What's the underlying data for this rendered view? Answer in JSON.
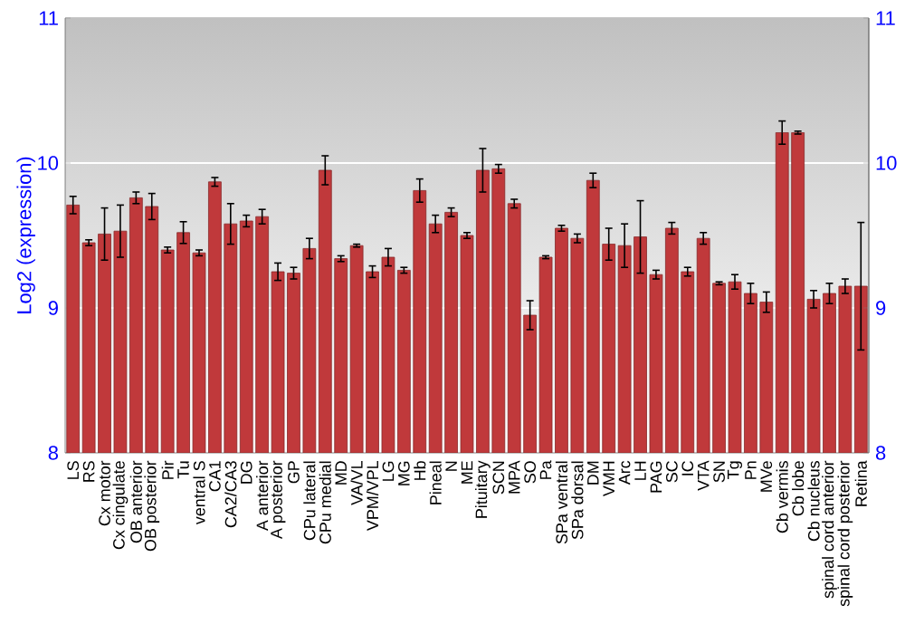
{
  "chart_data": {
    "type": "bar",
    "ylabel": "Log2 (expression)",
    "categories": [
      "LS",
      "RS",
      "Cx motor",
      "Cx cingulate",
      "OB anterior",
      "OB posterior",
      "Pir",
      "Tu",
      "ventral S",
      "CA1",
      "CA2/CA3",
      "DG",
      "A anterior",
      "A posterior",
      "GP",
      "CPu lateral",
      "CPu medial",
      "MD",
      "VA/VL",
      "VPM/VPL",
      "LG",
      "MG",
      "Hb",
      "Pineal",
      "N",
      "ME",
      "Pituitary",
      "SCN",
      "MPA",
      "SO",
      "Pa",
      "SPa ventral",
      "SPa dorsal",
      "DM",
      "VMH",
      "Arc",
      "LH",
      "PAG",
      "SC",
      "IC",
      "VTA",
      "SN",
      "Tg",
      "Pn",
      "MVe",
      "Cb vermis",
      "Cb lobe",
      "Cb nucleus",
      "spinal cord anterior",
      "spinal cord posterior",
      "Retina"
    ],
    "values": [
      9.71,
      9.45,
      9.51,
      9.53,
      9.76,
      9.7,
      9.4,
      9.52,
      9.38,
      9.87,
      9.58,
      9.6,
      9.63,
      9.25,
      9.24,
      9.41,
      9.95,
      9.34,
      9.43,
      9.25,
      9.35,
      9.26,
      9.81,
      9.58,
      9.66,
      9.5,
      9.95,
      9.96,
      9.72,
      8.95,
      9.35,
      9.55,
      9.48,
      9.88,
      9.44,
      9.43,
      9.49,
      9.23,
      9.55,
      9.25,
      9.48,
      9.17,
      9.18,
      9.1,
      9.04,
      10.21,
      10.21,
      9.06,
      9.1,
      9.15,
      9.15
    ],
    "errors": [
      0.06,
      0.02,
      0.18,
      0.18,
      0.04,
      0.09,
      0.02,
      0.075,
      0.02,
      0.03,
      0.14,
      0.04,
      0.05,
      0.06,
      0.04,
      0.07,
      0.1,
      0.02,
      0.01,
      0.04,
      0.06,
      0.02,
      0.08,
      0.06,
      0.03,
      0.02,
      0.15,
      0.03,
      0.03,
      0.1,
      0.01,
      0.02,
      0.03,
      0.05,
      0.11,
      0.15,
      0.25,
      0.03,
      0.04,
      0.03,
      0.04,
      0.01,
      0.05,
      0.07,
      0.07,
      0.08,
      0.01,
      0.06,
      0.07,
      0.05,
      0.44
    ],
    "color": "#c0393b",
    "ylim": [
      8,
      11
    ],
    "yticks": [
      8,
      9,
      10,
      11
    ],
    "y2lim": [
      8,
      11
    ],
    "y2ticks": [
      8,
      9,
      10,
      11
    ],
    "grid": "y"
  }
}
